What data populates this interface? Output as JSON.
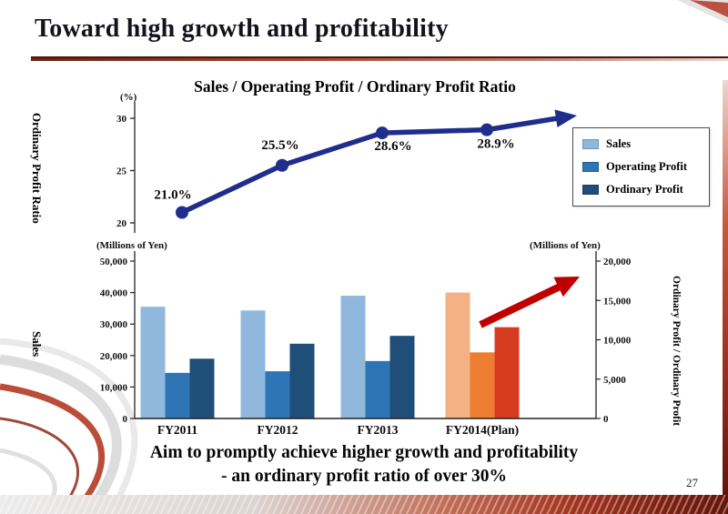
{
  "slide": {
    "title": "Toward high growth and profitability",
    "page_number": "27",
    "footer_line1": "Aim to promptly achieve higher growth and profitability",
    "footer_line2": "- an ordinary profit ratio of over 30%",
    "accent_red": "#a93c26"
  },
  "chart": {
    "title": "Sales / Operating Profit / Ordinary Profit Ratio",
    "left_axis_title_top": "Ordinary Profit Ratio",
    "left_axis_title_bottom": "Sales",
    "right_axis_title": "Ordinary Profit / Ordinary Profit",
    "legend": [
      {
        "label": "Sales",
        "color": "#8FB8DC"
      },
      {
        "label": "Operating Profit",
        "color": "#2E75B6"
      },
      {
        "label": "Ordinary Profit",
        "color": "#1F4E79"
      }
    ]
  },
  "chart_data": [
    {
      "type": "line",
      "name": "Ordinary Profit Ratio",
      "categories": [
        "FY2011",
        "FY2012",
        "FY2013",
        "FY2014(Plan)"
      ],
      "values": [
        21.0,
        25.5,
        28.6,
        28.9
      ],
      "point_labels": [
        "21.0%",
        "25.5%",
        "28.6%",
        "28.9%"
      ],
      "unit_label": "(%)",
      "ylim": [
        20,
        30
      ],
      "yticks": [
        30,
        25,
        20
      ],
      "line_color": "#1F2D8C"
    },
    {
      "type": "bar",
      "categories": [
        "FY2011",
        "FY2012",
        "FY2013",
        "FY2014(Plan)"
      ],
      "series": [
        {
          "name": "Sales",
          "axis": "left",
          "values": [
            35500,
            34300,
            39000,
            40000
          ]
        },
        {
          "name": "Operating Profit",
          "axis": "right",
          "values": [
            5800,
            6000,
            7300,
            8400
          ]
        },
        {
          "name": "Ordinary Profit",
          "axis": "right",
          "values": [
            7600,
            9500,
            10500,
            11600
          ]
        }
      ],
      "group_colors": {
        "actual": [
          "#8FB8DC",
          "#2E75B6",
          "#1F4E79"
        ],
        "plan": [
          "#F4B183",
          "#ED7D31",
          "#D63B1F"
        ]
      },
      "left_axis": {
        "title": "(Millions of Yen)",
        "lim": [
          0,
          50000
        ],
        "ticks": [
          "0",
          "10,000",
          "20,000",
          "30,000",
          "40,000",
          "50,000"
        ]
      },
      "right_axis": {
        "title": "(Millions of Yen)",
        "lim": [
          0,
          20000
        ],
        "ticks": [
          "0",
          "5,000",
          "10,000",
          "15,000",
          "20,000"
        ]
      },
      "growth_arrow_color": "#C00000"
    }
  ]
}
